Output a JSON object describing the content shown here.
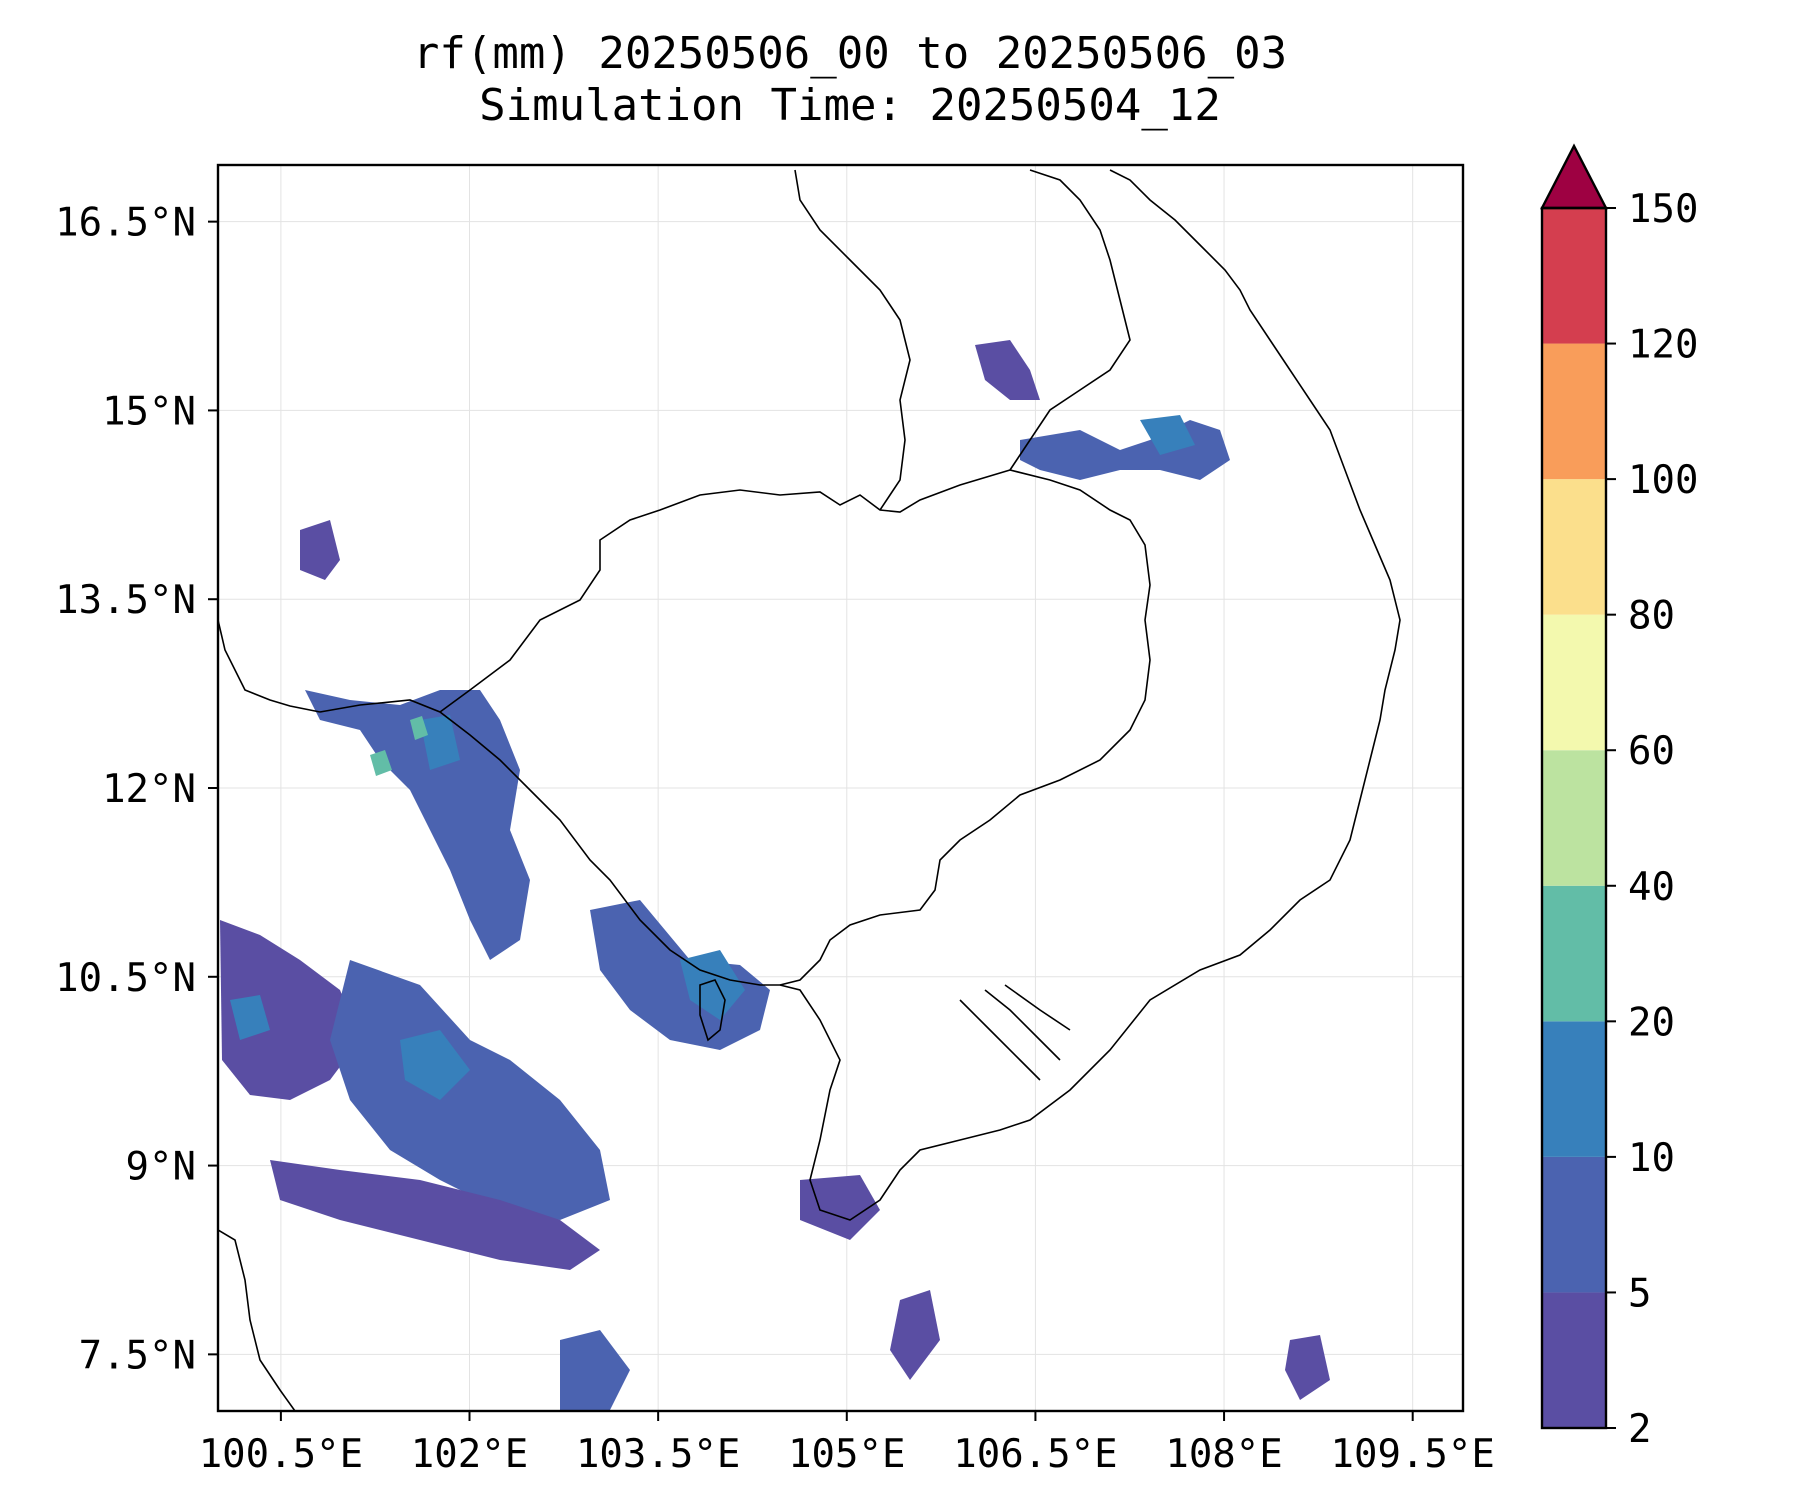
{
  "title": {
    "line1": "rf(mm) 20250506_00 to 20250506_03",
    "line2": "Simulation Time: 20250504_12"
  },
  "axes": {
    "x_ticks": [
      "100.5°E",
      "102°E",
      "103.5°E",
      "105°E",
      "106.5°E",
      "108°E",
      "109.5°E"
    ],
    "y_ticks": [
      "16.5°N",
      "15°N",
      "13.5°N",
      "12°N",
      "10.5°N",
      "9°N",
      "7.5°N"
    ],
    "lon_range": [
      100.0,
      109.9
    ],
    "lat_range": [
      7.05,
      16.95
    ]
  },
  "colorbar": {
    "levels": [
      "2",
      "5",
      "10",
      "20",
      "40",
      "60",
      "80",
      "100",
      "120",
      "150"
    ],
    "colors": [
      "#5a4ea3",
      "#4b63b0",
      "#3780bb",
      "#62bda7",
      "#bce3a0",
      "#f3f9ae",
      "#fbdf8c",
      "#f99d5a",
      "#d43e4f"
    ],
    "extend_color": "#9e0142"
  },
  "rain_colors": {
    "light": "#5a4ea3",
    "moderate": "#4b63b0",
    "heavy": "#3780bb",
    "very_heavy": "#62bda7"
  }
}
